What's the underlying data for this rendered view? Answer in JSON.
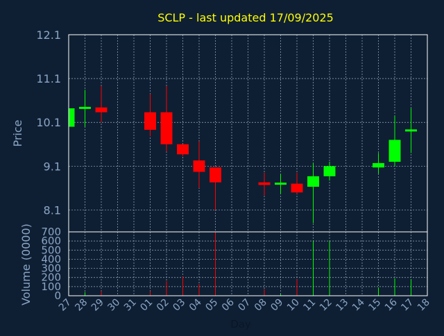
{
  "chart_data": {
    "type": "candlestick",
    "title": "SCLP - last updated 17/09/2025",
    "xlabel": "Day",
    "price_ylabel": "Price",
    "volume_ylabel": "Volume (0000)",
    "x_ticks": [
      "27",
      "28",
      "29",
      "30",
      "31",
      "01",
      "02",
      "03",
      "04",
      "05",
      "06",
      "07",
      "08",
      "09",
      "10",
      "11",
      "12",
      "13",
      "14",
      "15",
      "16",
      "17",
      "18"
    ],
    "price_ticks": [
      "12.1",
      "11.1",
      "10.1",
      "9.1",
      "8.1"
    ],
    "volume_ticks": [
      "700",
      "600",
      "500",
      "400",
      "300",
      "200",
      "100",
      "0"
    ],
    "price_ylim": [
      7.6,
      12.1
    ],
    "volume_ylim": [
      0,
      700
    ],
    "colors": {
      "up": "#00ff00",
      "down": "#ff0000",
      "title": "#ffff00",
      "axis_text": "#8aa6c6",
      "grid": "#9fb0c4",
      "background": "#0f1f33",
      "frame": "#ffffff"
    },
    "candles": [
      {
        "day": "27",
        "o": 10.0,
        "h": 10.45,
        "l": 10.0,
        "c": 10.42,
        "vol": 0
      },
      {
        "day": "28",
        "o": 10.42,
        "h": 10.84,
        "l": 10.0,
        "c": 10.44,
        "vol": 40
      },
      {
        "day": "29",
        "o": 10.44,
        "h": 10.93,
        "l": 10.1,
        "c": 10.33,
        "vol": 50
      },
      {
        "day": "01",
        "o": 10.33,
        "h": 10.75,
        "l": 9.78,
        "c": 9.93,
        "vol": 50
      },
      {
        "day": "02",
        "o": 10.33,
        "h": 10.93,
        "l": 9.43,
        "c": 9.6,
        "vol": 160
      },
      {
        "day": "03",
        "o": 9.6,
        "h": 9.6,
        "l": 9.33,
        "c": 9.37,
        "vol": 210
      },
      {
        "day": "04",
        "o": 9.23,
        "h": 9.67,
        "l": 8.6,
        "c": 8.97,
        "vol": 130
      },
      {
        "day": "05",
        "o": 9.07,
        "h": 9.07,
        "l": 8.1,
        "c": 8.73,
        "vol": 700
      },
      {
        "day": "08",
        "o": 8.73,
        "h": 8.95,
        "l": 8.43,
        "c": 8.67,
        "vol": 70
      },
      {
        "day": "09",
        "o": 8.7,
        "h": 8.92,
        "l": 8.47,
        "c": 8.7,
        "vol": 20
      },
      {
        "day": "10",
        "o": 8.7,
        "h": 8.95,
        "l": 8.47,
        "c": 8.5,
        "vol": 180
      },
      {
        "day": "11",
        "o": 8.63,
        "h": 9.17,
        "l": 7.8,
        "c": 8.87,
        "vol": 600
      },
      {
        "day": "12",
        "o": 8.87,
        "h": 9.2,
        "l": 8.77,
        "c": 9.1,
        "vol": 600
      },
      {
        "day": "15",
        "o": 9.07,
        "h": 9.4,
        "l": 8.93,
        "c": 9.17,
        "vol": 90
      },
      {
        "day": "16",
        "o": 9.2,
        "h": 10.25,
        "l": 9.1,
        "c": 9.7,
        "vol": 190
      },
      {
        "day": "17",
        "o": 9.9,
        "h": 10.42,
        "l": 9.4,
        "c": 9.93,
        "vol": 180
      }
    ]
  }
}
